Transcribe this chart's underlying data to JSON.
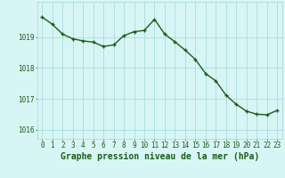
{
  "x": [
    0,
    1,
    2,
    3,
    4,
    5,
    6,
    7,
    8,
    9,
    10,
    11,
    12,
    13,
    14,
    15,
    16,
    17,
    18,
    19,
    20,
    21,
    22,
    23
  ],
  "y": [
    1019.65,
    1019.42,
    1019.1,
    1018.95,
    1018.88,
    1018.84,
    1018.7,
    1018.75,
    1019.05,
    1019.18,
    1019.22,
    1019.58,
    1019.1,
    1018.85,
    1018.58,
    1018.28,
    1017.82,
    1017.58,
    1017.12,
    1016.82,
    1016.6,
    1016.5,
    1016.48,
    1016.62
  ],
  "line_color": "#1a5c1a",
  "marker": "+",
  "marker_size": 3.5,
  "marker_lw": 1.0,
  "bg_color": "#d8f5f5",
  "grid_color": "#aadddd",
  "xlabel": "Graphe pression niveau de la mer (hPa)",
  "xlabel_color": "#1a5c1a",
  "tick_color": "#1a5c1a",
  "ylim": [
    1015.7,
    1020.15
  ],
  "yticks": [
    1016,
    1017,
    1018,
    1019
  ],
  "xticks": [
    0,
    1,
    2,
    3,
    4,
    5,
    6,
    7,
    8,
    9,
    10,
    11,
    12,
    13,
    14,
    15,
    16,
    17,
    18,
    19,
    20,
    21,
    22,
    23
  ],
  "xtick_labels": [
    "0",
    "1",
    "2",
    "3",
    "4",
    "5",
    "6",
    "7",
    "8",
    "9",
    "10",
    "11",
    "12",
    "13",
    "14",
    "15",
    "16",
    "17",
    "18",
    "19",
    "20",
    "21",
    "22",
    "23"
  ],
  "tick_fontsize": 5.5,
  "xlabel_fontsize": 7,
  "line_width": 1.0
}
